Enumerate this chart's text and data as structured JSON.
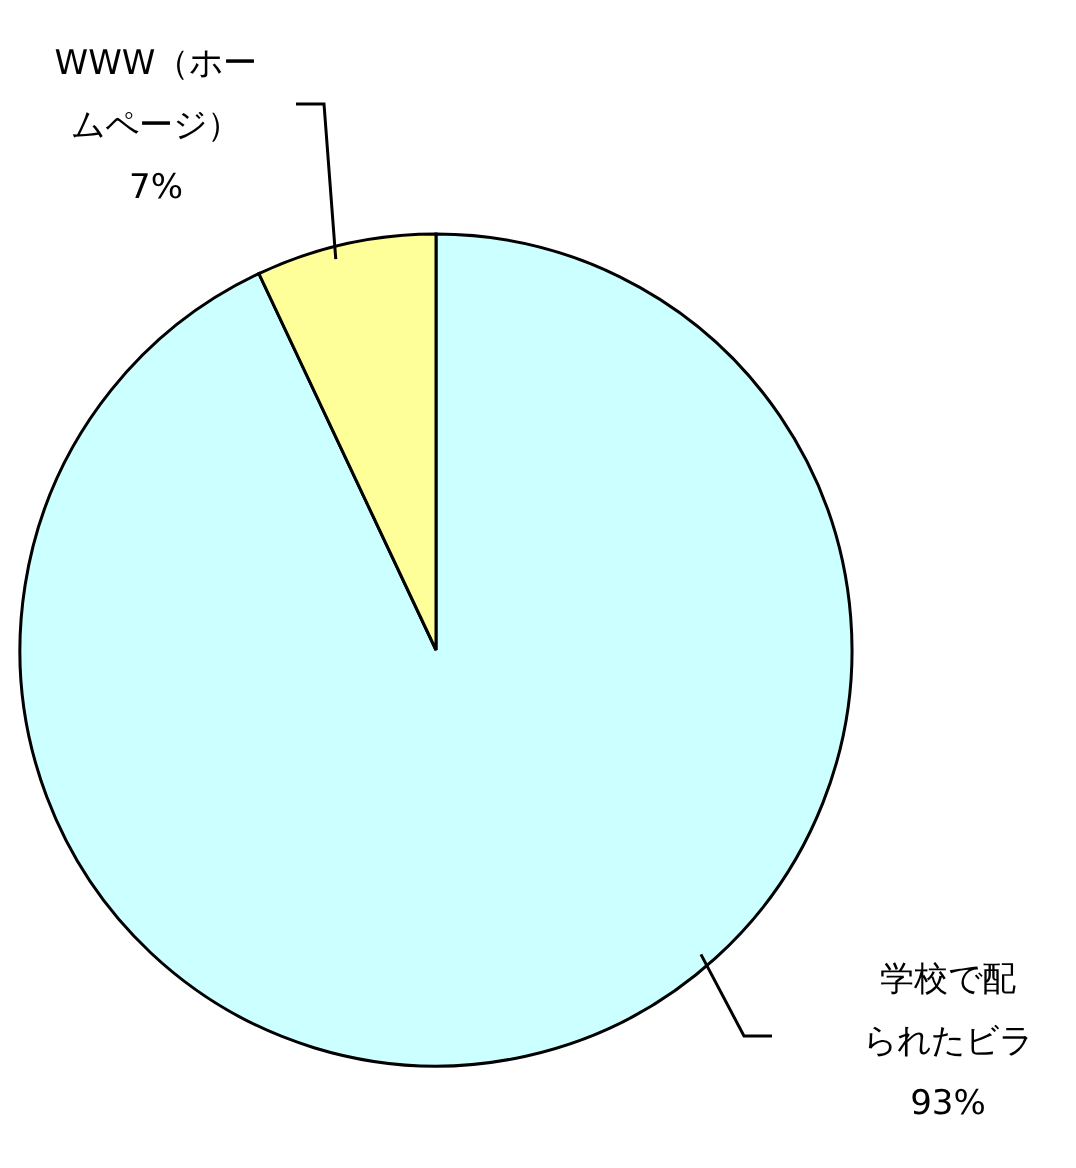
{
  "chart_data": {
    "type": "pie",
    "categories": [
      "学校で配られたビラ",
      "WWW（ホームページ）"
    ],
    "values": [
      93,
      7
    ],
    "value_labels": [
      "93%",
      "7%"
    ],
    "colors": [
      "#ccffff",
      "#ffff99"
    ]
  }
}
